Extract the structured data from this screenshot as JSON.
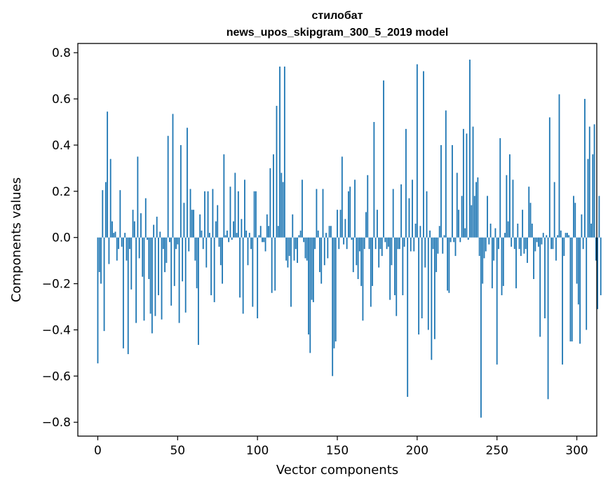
{
  "chart_data": {
    "type": "bar",
    "title": "стилобат",
    "subtitle": "news_upos_skipgram_300_5_2019 model",
    "xlabel": "Vector components",
    "ylabel": "Components values",
    "xlim": [
      -12.5,
      312.5
    ],
    "ylim": [
      -0.86,
      0.84
    ],
    "x_ticks": [
      0,
      50,
      100,
      150,
      200,
      250,
      300
    ],
    "x_tick_labels": [
      "0",
      "50",
      "100",
      "150",
      "200",
      "250",
      "300"
    ],
    "y_ticks": [
      -0.8,
      -0.6,
      -0.4,
      -0.2,
      0.0,
      0.2,
      0.4,
      0.6,
      0.8
    ],
    "y_tick_labels": [
      "−0.8",
      "−0.6",
      "−0.4",
      "−0.2",
      "0.0",
      "0.2",
      "0.4",
      "0.6",
      "0.8"
    ],
    "grid": false,
    "bar_color": "#1f77b4",
    "values": [
      -0.545,
      -0.15,
      -0.2,
      0.205,
      -0.405,
      0.24,
      0.545,
      -0.115,
      0.34,
      0.07,
      0.02,
      0.025,
      -0.1,
      -0.05,
      0.205,
      -0.04,
      -0.48,
      0.02,
      -0.1,
      -0.505,
      -0.05,
      -0.225,
      0.12,
      0.07,
      -0.37,
      0.35,
      -0.09,
      0.105,
      -0.17,
      -0.36,
      0.17,
      -0.01,
      -0.18,
      -0.33,
      -0.415,
      0.055,
      -0.34,
      0.09,
      -0.25,
      0.025,
      -0.355,
      -0.05,
      -0.15,
      -0.11,
      0.44,
      -0.02,
      -0.295,
      0.535,
      -0.21,
      -0.05,
      -0.03,
      -0.37,
      0.4,
      -0.19,
      0.15,
      -0.325,
      0.475,
      -0.06,
      0.21,
      0.12,
      0.12,
      -0.1,
      -0.22,
      -0.465,
      0.1,
      0.03,
      -0.05,
      0.2,
      -0.13,
      0.2,
      0.02,
      -0.25,
      0.21,
      -0.28,
      0.07,
      0.14,
      -0.04,
      -0.12,
      -0.2,
      0.36,
      0.01,
      0.03,
      -0.02,
      0.22,
      -0.01,
      0.07,
      0.28,
      0.02,
      0.2,
      -0.26,
      0.08,
      -0.33,
      0.25,
      0.03,
      -0.12,
      0.02,
      -0.05,
      -0.3,
      0.2,
      0.2,
      -0.35,
      0.01,
      0.05,
      -0.02,
      -0.02,
      -0.06,
      0.1,
      0.05,
      0.3,
      -0.24,
      0.36,
      -0.23,
      0.57,
      0.05,
      0.74,
      0.28,
      0.24,
      0.74,
      -0.1,
      -0.13,
      -0.08,
      -0.3,
      0.1,
      -0.1,
      -0.05,
      -0.11,
      0.01,
      0.03,
      0.25,
      -0.02,
      -0.09,
      -0.1,
      -0.42,
      -0.5,
      -0.27,
      -0.28,
      -0.05,
      0.21,
      0.03,
      -0.15,
      -0.2,
      0.21,
      -0.12,
      0.02,
      -0.09,
      0.05,
      0.05,
      -0.6,
      -0.48,
      -0.45,
      0.12,
      -0.05,
      0.12,
      0.35,
      -0.03,
      0.08,
      -0.05,
      0.2,
      0.22,
      -0.01,
      -0.15,
      0.25,
      -0.12,
      -0.18,
      -0.06,
      -0.21,
      -0.36,
      -0.05,
      0.11,
      0.27,
      -0.05,
      -0.3,
      -0.21,
      0.5,
      -0.05,
      0.12,
      -0.13,
      -0.05,
      -0.08,
      0.68,
      -0.02,
      -0.05,
      -0.04,
      -0.27,
      -0.12,
      0.21,
      -0.25,
      -0.34,
      -0.05,
      -0.05,
      0.23,
      -0.25,
      -0.04,
      0.47,
      -0.69,
      0.17,
      -0.06,
      0.25,
      -0.06,
      0.06,
      0.75,
      -0.42,
      0.05,
      -0.35,
      0.72,
      -0.13,
      0.2,
      -0.4,
      0.03,
      -0.53,
      -0.05,
      -0.44,
      -0.15,
      -0.07,
      0.05,
      0.4,
      -0.07,
      0.01,
      0.55,
      -0.23,
      -0.24,
      -0.02,
      0.4,
      -0.02,
      -0.08,
      0.28,
      0.12,
      -0.02,
      0.18,
      0.47,
      0.04,
      0.45,
      -0.01,
      0.77,
      0.14,
      0.48,
      0.18,
      0.24,
      0.26,
      -0.08,
      -0.78,
      -0.2,
      -0.09,
      -0.06,
      0.18,
      -0.03,
      0.06,
      -0.22,
      -0.1,
      0.04,
      -0.55,
      -0.05,
      0.43,
      -0.25,
      -0.21,
      0.02,
      0.27,
      0.07,
      0.36,
      -0.04,
      0.25,
      -0.05,
      -0.22,
      0.06,
      -0.05,
      -0.08,
      0.12,
      -0.07,
      -0.05,
      -0.11,
      0.22,
      0.15,
      0.06,
      -0.18,
      -0.06,
      -0.02,
      -0.04,
      -0.43,
      -0.03,
      0.02,
      -0.35,
      0.01,
      -0.7,
      0.52,
      -0.05,
      -0.05,
      0.24,
      -0.1,
      0.01,
      0.62,
      0.03,
      -0.55,
      -0.08,
      0.02,
      0.02,
      0.01,
      -0.45,
      -0.45,
      0.18,
      0.15,
      -0.2,
      -0.29,
      -0.46,
      0.1,
      -0.05,
      0.6,
      -0.4,
      0.34,
      0.48,
      0.06,
      0.36,
      0.49,
      -0.1,
      -0.31,
      0.18,
      -0.25
    ]
  }
}
